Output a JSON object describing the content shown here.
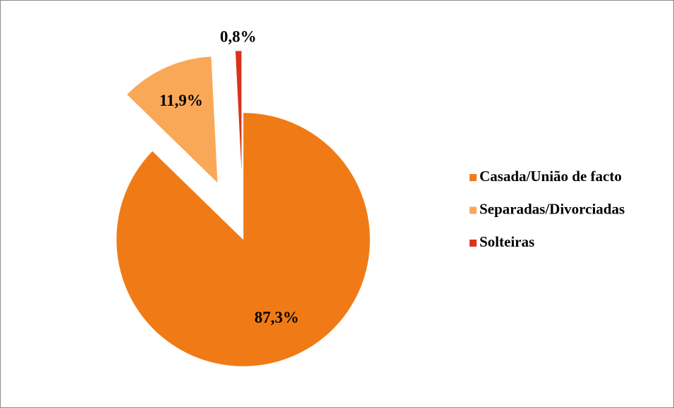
{
  "chart_data": {
    "type": "pie",
    "categories": [
      "Casada/União de facto",
      "Separadas/Divorciadas",
      "Solteiras"
    ],
    "values": [
      87.3,
      11.9,
      0.8
    ],
    "value_labels": [
      "87,3%",
      "11,9%",
      "0,8%"
    ],
    "colors": [
      "#f07b16",
      "#f9a858",
      "#d9341a"
    ],
    "legend": "right"
  }
}
